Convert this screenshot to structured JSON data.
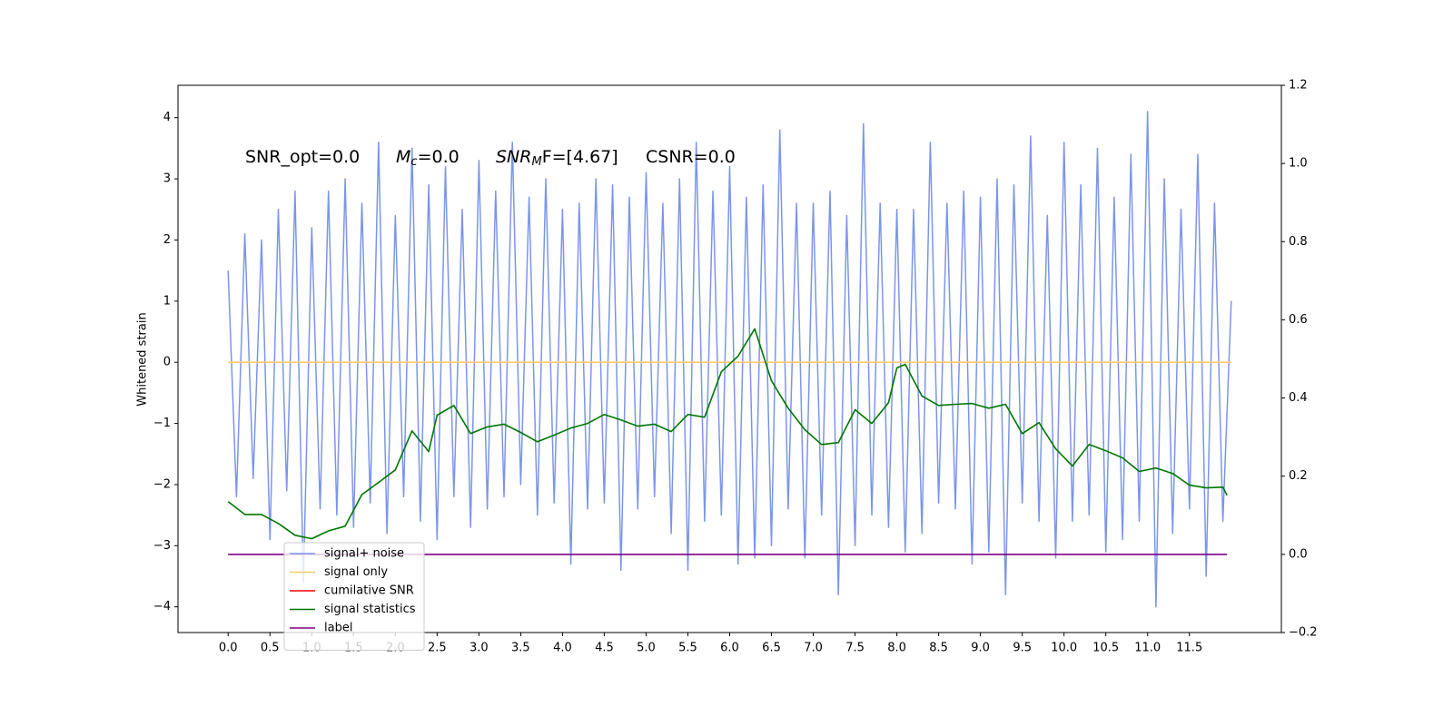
{
  "chart_data": {
    "type": "line",
    "ylabel": "Whitened strain",
    "annotations": [
      [
        "SNR_opt=0.0"
      ],
      [
        "M",
        "c",
        "=0.0"
      ],
      [
        "SNR",
        "M",
        "F=[4.67]"
      ],
      [
        "CSNR=0.0"
      ]
    ],
    "xlim": [
      -0.6,
      12.6
    ],
    "ylim": [
      -4.42,
      4.53
    ],
    "y2lim": [
      -0.2,
      1.2
    ],
    "xticks": [
      {
        "value": 0,
        "label": "0.0"
      },
      0.5,
      {
        "value": 1,
        "label": "1.0"
      },
      1.5,
      {
        "value": 2,
        "label": "2.0"
      },
      2.5,
      {
        "value": 3,
        "label": "3.0"
      },
      3.5,
      {
        "value": 4,
        "label": "4.0"
      },
      4.5,
      {
        "value": 5,
        "label": "5.0"
      },
      5.5,
      {
        "value": 6,
        "label": "6.0"
      },
      6.5,
      {
        "value": 7,
        "label": "7.0"
      },
      7.5,
      {
        "value": 8,
        "label": "8.0"
      },
      8.5,
      {
        "value": 9,
        "label": "9.0"
      },
      9.5,
      {
        "value": 10,
        "label": "10.0"
      },
      10.5,
      {
        "value": 11,
        "label": "11.0"
      },
      11.5
    ],
    "yticks": [
      {
        "value": -4,
        "label": "−4"
      },
      {
        "value": -3,
        "label": "−3"
      },
      {
        "value": -2,
        "label": "−2"
      },
      {
        "value": -1,
        "label": "−1"
      },
      0,
      1,
      2,
      3,
      4
    ],
    "y2ticks": [
      {
        "value": -0.2,
        "label": "−0.2"
      },
      {
        "value": 0,
        "label": "0.0"
      },
      0.2,
      0.4,
      0.6,
      0.8,
      {
        "value": 1,
        "label": "1.0"
      },
      1.2
    ],
    "legend": "lower left",
    "series": [
      {
        "name": "signal+ noise",
        "color": "#7b96e8",
        "axis": "y",
        "x": [
          0,
          0.1,
          0.2,
          0.3,
          0.4,
          0.5,
          0.6,
          0.7,
          0.8,
          0.9,
          1,
          1.1,
          1.2,
          1.3,
          1.4,
          1.5,
          1.6,
          1.7,
          1.8,
          1.9,
          2,
          2.1,
          2.2,
          2.3,
          2.4,
          2.5,
          2.6,
          2.7,
          2.8,
          2.9,
          3,
          3.1,
          3.2,
          3.3,
          3.4,
          3.5,
          3.6,
          3.7,
          3.8,
          3.9,
          4,
          4.1,
          4.2,
          4.3,
          4.4,
          4.5,
          4.6,
          4.7,
          4.8,
          4.9,
          5,
          5.1,
          5.2,
          5.3,
          5.4,
          5.5,
          5.6,
          5.7,
          5.8,
          5.9,
          6,
          6.1,
          6.2,
          6.3,
          6.4,
          6.5,
          6.6,
          6.7,
          6.8,
          6.9,
          7,
          7.1,
          7.2,
          7.3,
          7.4,
          7.5,
          7.6,
          7.7,
          7.8,
          7.9,
          8,
          8.1,
          8.2,
          8.3,
          8.4,
          8.5,
          8.6,
          8.7,
          8.8,
          8.9,
          9,
          9.1,
          9.2,
          9.3,
          9.4,
          9.5,
          9.6,
          9.7,
          9.8,
          9.9,
          10,
          10.1,
          10.2,
          10.3,
          10.4,
          10.5,
          10.6,
          10.7,
          10.8,
          10.9,
          11,
          11.1,
          11.2,
          11.3,
          11.4,
          11.5,
          11.6,
          11.7,
          11.8,
          11.9,
          12
        ],
        "values": [
          1.5,
          -2.2,
          2.1,
          -1.9,
          2.0,
          -2.9,
          2.5,
          -2.1,
          2.8,
          -3.6,
          2.2,
          -2.4,
          2.8,
          -2.5,
          3.0,
          -2.7,
          2.6,
          -2.3,
          3.6,
          -2.8,
          2.4,
          -2.2,
          3.5,
          -2.6,
          2.9,
          -2.9,
          3.2,
          -2.2,
          2.5,
          -2.7,
          3.3,
          -2.4,
          2.8,
          -2.2,
          3.6,
          -2.0,
          2.7,
          -2.5,
          3.0,
          -2.3,
          2.5,
          -3.3,
          2.6,
          -2.4,
          3.0,
          -2.3,
          2.9,
          -3.4,
          2.7,
          -2.4,
          3.1,
          -2.2,
          2.6,
          -2.8,
          3.0,
          -3.4,
          3.6,
          -2.6,
          2.8,
          -2.5,
          3.2,
          -3.3,
          2.7,
          -3.2,
          2.9,
          -3.0,
          3.8,
          -2.4,
          2.6,
          -3.2,
          2.6,
          -2.5,
          2.8,
          -3.8,
          2.4,
          -3.0,
          3.9,
          -2.5,
          2.6,
          -2.7,
          2.5,
          -3.1,
          2.5,
          -2.8,
          3.6,
          -2.3,
          2.6,
          -2.4,
          2.8,
          -3.3,
          2.7,
          -3.1,
          3.0,
          -3.8,
          2.9,
          -2.3,
          3.7,
          -2.6,
          2.4,
          -3.2,
          3.6,
          -2.6,
          2.9,
          -2.5,
          3.5,
          -3.1,
          2.7,
          -2.9,
          3.4,
          -2.6,
          4.1,
          -4.0,
          3.0,
          -2.8,
          2.5,
          -2.4,
          3.4,
          -3.5,
          2.6,
          -2.6,
          1.0
        ]
      },
      {
        "name": "signal only",
        "color": "#ffc870",
        "axis": "y",
        "x": [
          0,
          12
        ],
        "values": [
          0,
          0
        ]
      },
      {
        "name": "cumilative SNR",
        "color": "#ff0000",
        "axis": "y2"
      },
      {
        "name": "signal statistics",
        "color": "#007700",
        "axis": "y2",
        "x": [
          0,
          0.2,
          0.4,
          0.6,
          0.8,
          1.0,
          1.2,
          1.4,
          1.6,
          1.8,
          2.0,
          2.2,
          2.4,
          2.5,
          2.7,
          2.9,
          3.1,
          3.3,
          3.5,
          3.7,
          3.9,
          4.1,
          4.3,
          4.5,
          4.7,
          4.9,
          5.1,
          5.3,
          5.5,
          5.7,
          5.9,
          6.1,
          6.3,
          6.5,
          6.7,
          6.9,
          7.1,
          7.3,
          7.5,
          7.7,
          7.9,
          8.0,
          8.1,
          8.3,
          8.5,
          8.7,
          8.9,
          9.1,
          9.3,
          9.5,
          9.7,
          9.9,
          10.1,
          10.3,
          10.5,
          10.7,
          10.9,
          11.1,
          11.3,
          11.5,
          11.7,
          11.9,
          11.95
        ],
        "values": [
          0.135,
          0.102,
          0.102,
          0.079,
          0.049,
          0.04,
          0.06,
          0.072,
          0.153,
          0.184,
          0.216,
          0.316,
          0.263,
          0.356,
          0.381,
          0.309,
          0.326,
          0.333,
          0.312,
          0.288,
          0.305,
          0.323,
          0.335,
          0.358,
          0.344,
          0.328,
          0.333,
          0.314,
          0.358,
          0.351,
          0.467,
          0.507,
          0.577,
          0.444,
          0.374,
          0.319,
          0.281,
          0.286,
          0.37,
          0.335,
          0.388,
          0.477,
          0.486,
          0.405,
          0.381,
          0.384,
          0.386,
          0.374,
          0.384,
          0.309,
          0.337,
          0.27,
          0.226,
          0.281,
          0.265,
          0.247,
          0.212,
          0.221,
          0.207,
          0.177,
          0.17,
          0.172,
          0.151
        ]
      },
      {
        "name": "label",
        "color": "#800080",
        "axis": "y2",
        "x": [
          0,
          11.95
        ],
        "values": [
          0,
          0
        ]
      }
    ]
  }
}
